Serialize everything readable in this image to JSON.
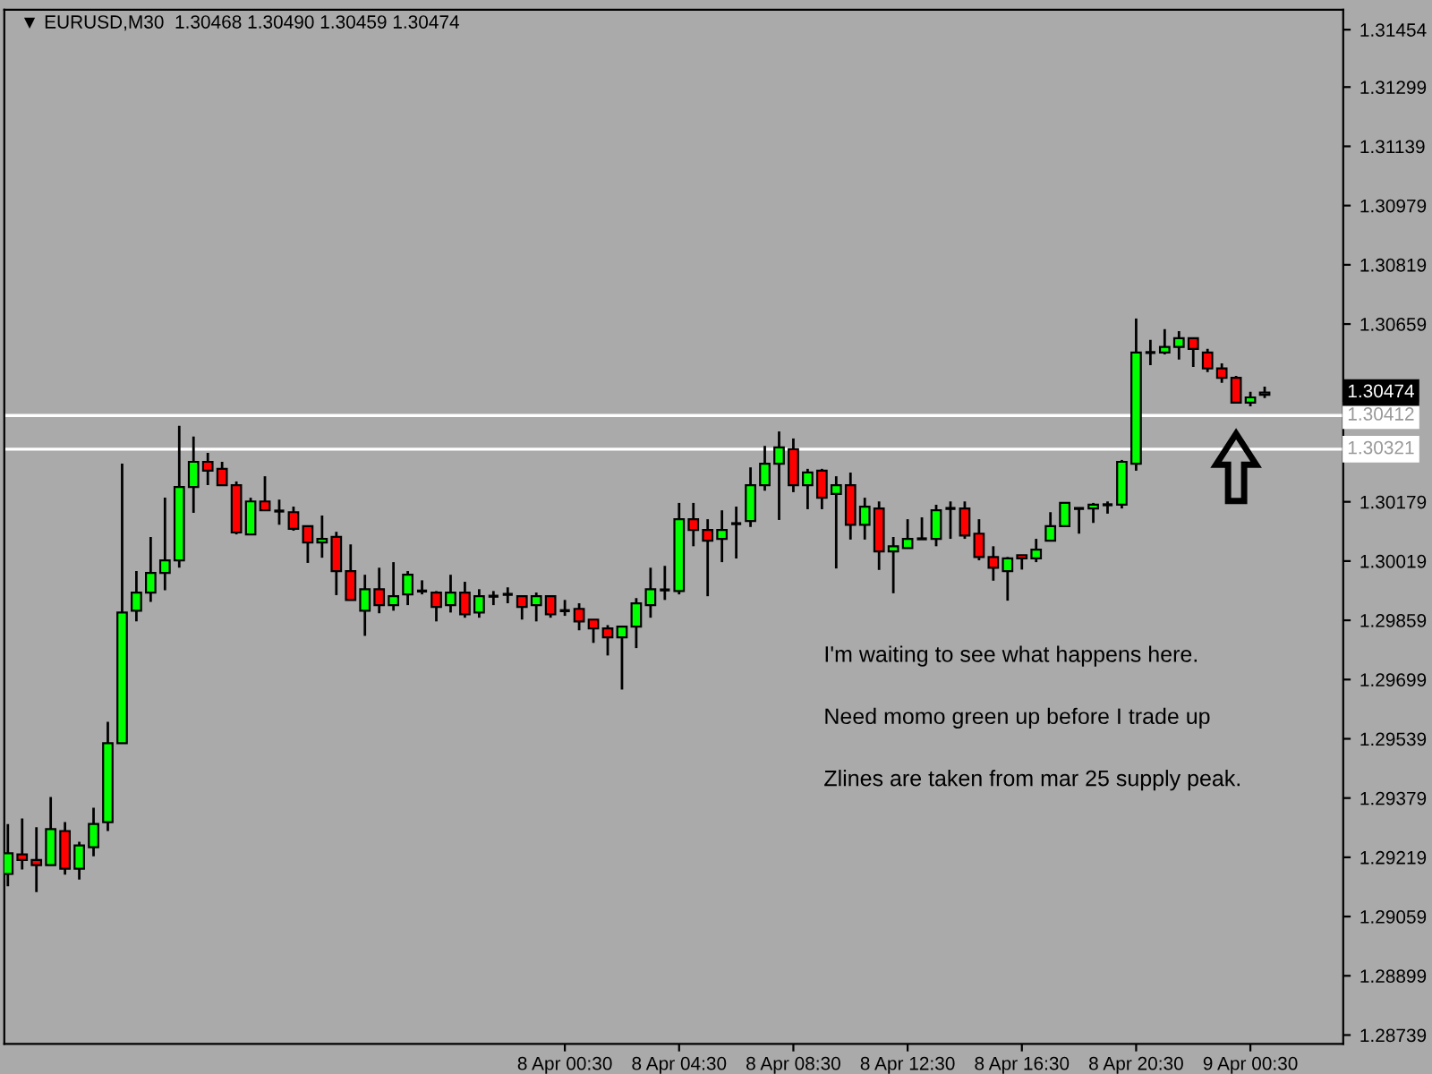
{
  "chart_data": {
    "type": "candlestick",
    "title": "▼ EURUSD,M30  1.30468 1.30490 1.30459 1.30474",
    "categories": [
      null,
      null,
      null,
      null,
      null,
      null,
      null,
      null,
      null,
      null,
      null,
      null,
      null,
      null,
      null,
      null,
      null,
      null,
      null,
      null,
      null,
      null,
      null,
      null,
      null,
      null,
      null,
      null,
      null,
      null,
      null,
      null,
      null,
      null,
      null,
      null,
      null,
      null,
      null,
      "8 Apr 00:30",
      null,
      null,
      null,
      null,
      null,
      null,
      null,
      "8 Apr 04:30",
      null,
      null,
      null,
      null,
      null,
      null,
      null,
      "8 Apr 08:30",
      null,
      null,
      null,
      null,
      null,
      null,
      null,
      "8 Apr 12:30",
      null,
      null,
      null,
      null,
      null,
      null,
      null,
      "8 Apr 16:30",
      null,
      null,
      null,
      null,
      null,
      null,
      null,
      "8 Apr 20:30",
      null,
      null,
      null,
      null,
      null,
      null,
      null,
      "9 Apr 00:30",
      null
    ],
    "ohlc": [
      [
        1.29174,
        1.29309,
        1.29141,
        1.2923
      ],
      [
        1.29227,
        1.29324,
        1.29186,
        1.29212
      ],
      [
        1.29212,
        1.293,
        1.29125,
        1.29198
      ],
      [
        1.29198,
        1.29382,
        1.29198,
        1.29295
      ],
      [
        1.2929,
        1.29314,
        1.29172,
        1.29188
      ],
      [
        1.29188,
        1.29261,
        1.29159,
        1.29251
      ],
      [
        1.29246,
        1.29353,
        1.29222,
        1.29309
      ],
      [
        1.29314,
        1.29585,
        1.2929,
        1.29527
      ],
      [
        1.29527,
        1.30282,
        1.29527,
        1.2988
      ],
      [
        1.29885,
        1.29992,
        1.29856,
        1.29934
      ],
      [
        1.29934,
        1.30084,
        1.29909,
        1.29987
      ],
      [
        1.29987,
        1.3019,
        1.2994,
        1.30021
      ],
      [
        1.30021,
        1.30384,
        1.30001,
        1.30219
      ],
      [
        1.30219,
        1.30355,
        1.30149,
        1.30287
      ],
      [
        1.30287,
        1.30311,
        1.30224,
        1.30263
      ],
      [
        1.30268,
        1.30287,
        1.30224,
        1.30224
      ],
      [
        1.30224,
        1.30234,
        1.30091,
        1.30096
      ],
      [
        1.30091,
        1.3019,
        1.30091,
        1.3018
      ],
      [
        1.3018,
        1.30248,
        1.30156,
        1.30156
      ],
      [
        1.30154,
        1.30185,
        1.30117,
        1.30154
      ],
      [
        1.30151,
        1.30166,
        1.30101,
        1.30106
      ],
      [
        1.30113,
        1.30113,
        1.30014,
        1.30069
      ],
      [
        1.30069,
        1.30142,
        1.30028,
        1.30079
      ],
      [
        1.30084,
        1.30098,
        1.29927,
        1.29992
      ],
      [
        1.29992,
        1.30064,
        1.29914,
        1.29914
      ],
      [
        1.29885,
        1.29982,
        1.29817,
        1.29943
      ],
      [
        1.29943,
        1.30001,
        1.29878,
        1.299
      ],
      [
        1.299,
        1.30016,
        1.29885,
        1.29924
      ],
      [
        1.29929,
        1.29992,
        1.299,
        1.29982
      ],
      [
        1.29938,
        1.29967,
        1.29929,
        1.29938
      ],
      [
        1.29934,
        1.29938,
        1.29856,
        1.29895
      ],
      [
        1.299,
        1.29982,
        1.2988,
        1.29934
      ],
      [
        1.29934,
        1.29963,
        1.29866,
        1.29875
      ],
      [
        1.2988,
        1.29943,
        1.29866,
        1.29924
      ],
      [
        1.29924,
        1.29938,
        1.299,
        1.29924
      ],
      [
        1.29929,
        1.29948,
        1.29905,
        1.29929
      ],
      [
        1.29924,
        1.29924,
        1.29861,
        1.29895
      ],
      [
        1.299,
        1.29934,
        1.29856,
        1.29924
      ],
      [
        1.29924,
        1.29924,
        1.29866,
        1.29875
      ],
      [
        1.29885,
        1.29914,
        1.29871,
        1.29885
      ],
      [
        1.2989,
        1.29905,
        1.29832,
        1.29856
      ],
      [
        1.29861,
        1.29861,
        1.29798,
        1.29837
      ],
      [
        1.29837,
        1.29846,
        1.29764,
        1.29813
      ],
      [
        1.29813,
        1.29842,
        1.29672,
        1.29842
      ],
      [
        1.29842,
        1.29919,
        1.29784,
        1.29905
      ],
      [
        1.299,
        1.30001,
        1.29866,
        1.29943
      ],
      [
        1.29941,
        1.30006,
        1.29914,
        1.29941
      ],
      [
        1.29938,
        1.30176,
        1.29929,
        1.30132
      ],
      [
        1.30132,
        1.30176,
        1.30059,
        1.30103
      ],
      [
        1.30103,
        1.30132,
        1.29924,
        1.30074
      ],
      [
        1.30079,
        1.30156,
        1.30016,
        1.30103
      ],
      [
        1.3012,
        1.30166,
        1.30026,
        1.3012
      ],
      [
        1.30127,
        1.30272,
        1.30111,
        1.30224
      ],
      [
        1.30224,
        1.3033,
        1.30209,
        1.30282
      ],
      [
        1.30282,
        1.30369,
        1.3013,
        1.30326
      ],
      [
        1.30321,
        1.3035,
        1.30205,
        1.30224
      ],
      [
        1.30224,
        1.30268,
        1.30159,
        1.30258
      ],
      [
        1.30263,
        1.30268,
        1.30159,
        1.3019
      ],
      [
        1.302,
        1.30248,
        1.29999,
        1.30224
      ],
      [
        1.30224,
        1.30258,
        1.30077,
        1.30117
      ],
      [
        1.30117,
        1.3019,
        1.30077,
        1.30166
      ],
      [
        1.30161,
        1.3018,
        1.29995,
        1.30045
      ],
      [
        1.30045,
        1.30084,
        1.29932,
        1.30059
      ],
      [
        1.30054,
        1.30132,
        1.30054,
        1.30079
      ],
      [
        1.30079,
        1.30137,
        1.30079,
        1.30079
      ],
      [
        1.30079,
        1.30171,
        1.30059,
        1.30156
      ],
      [
        1.30161,
        1.3018,
        1.30079,
        1.30161
      ],
      [
        1.30161,
        1.3018,
        1.30079,
        1.30088
      ],
      [
        1.30093,
        1.30132,
        1.30021,
        1.3003
      ],
      [
        1.3003,
        1.30059,
        1.29966,
        1.30001
      ],
      [
        1.29992,
        1.3003,
        1.29912,
        1.30026
      ],
      [
        1.30035,
        1.30035,
        1.29996,
        1.30026
      ],
      [
        1.30026,
        1.30079,
        1.30016,
        1.3005
      ],
      [
        1.30074,
        1.30151,
        1.30074,
        1.30113
      ],
      [
        1.30113,
        1.30176,
        1.30113,
        1.30176
      ],
      [
        1.30161,
        1.30161,
        1.30093,
        1.30161
      ],
      [
        1.30161,
        1.30176,
        1.30122,
        1.30171
      ],
      [
        1.30171,
        1.3018,
        1.30147,
        1.30171
      ],
      [
        1.30171,
        1.30292,
        1.30161,
        1.30287
      ],
      [
        1.30282,
        1.30674,
        1.30263,
        1.30582
      ],
      [
        1.30582,
        1.30616,
        1.30548,
        1.30582
      ],
      [
        1.30582,
        1.30645,
        1.30577,
        1.30597
      ],
      [
        1.30597,
        1.3064,
        1.30563,
        1.30621
      ],
      [
        1.30621,
        1.30621,
        1.30543,
        1.30592
      ],
      [
        1.30582,
        1.30592,
        1.30529,
        1.30539
      ],
      [
        1.30539,
        1.30553,
        1.305,
        1.30514
      ],
      [
        1.30514,
        1.30519,
        1.30447,
        1.30447
      ],
      [
        1.30447,
        1.30476,
        1.30437,
        1.30461
      ],
      [
        1.30468,
        1.3049,
        1.30459,
        1.30474
      ]
    ],
    "colors": [
      "#00ff00",
      "#ff0000",
      "#ff0000",
      "#00ff00",
      "#ff0000",
      "#00ff00",
      "#00ff00",
      "#00ff00",
      "#00ff00",
      "#00ff00",
      "#00ff00",
      "#00ff00",
      "#00ff00",
      "#00ff00",
      "#ff0000",
      "#ff0000",
      "#ff0000",
      "#00ff00",
      "#ff0000",
      "#000000",
      "#ff0000",
      "#ff0000",
      "#00ff00",
      "#ff0000",
      "#ff0000",
      "#00ff00",
      "#ff0000",
      "#00ff00",
      "#00ff00",
      "#000000",
      "#ff0000",
      "#00ff00",
      "#ff0000",
      "#00ff00",
      "#000000",
      "#000000",
      "#ff0000",
      "#00ff00",
      "#ff0000",
      "#000000",
      "#ff0000",
      "#ff0000",
      "#ff0000",
      "#00ff00",
      "#00ff00",
      "#00ff00",
      "#000000",
      "#00ff00",
      "#ff0000",
      "#ff0000",
      "#00ff00",
      "#000000",
      "#00ff00",
      "#00ff00",
      "#00ff00",
      "#ff0000",
      "#00ff00",
      "#ff0000",
      "#00ff00",
      "#ff0000",
      "#00ff00",
      "#ff0000",
      "#00ff00",
      "#00ff00",
      "#000000",
      "#00ff00",
      "#000000",
      "#ff0000",
      "#ff0000",
      "#ff0000",
      "#00ff00",
      "#ff0000",
      "#00ff00",
      "#00ff00",
      "#00ff00",
      "#000000",
      "#00ff00",
      "#000000",
      "#00ff00",
      "#00ff00",
      "#000000",
      "#00ff00",
      "#00ff00",
      "#ff0000",
      "#ff0000",
      "#ff0000",
      "#ff0000",
      "#00ff00",
      "#00ff00"
    ],
    "ylim": [
      1.28715,
      1.31508
    ],
    "yticks": [
      1.31454,
      1.31299,
      1.31139,
      1.30979,
      1.30819,
      1.30659,
      1.30179,
      1.30019,
      1.29859,
      1.29699,
      1.29539,
      1.29379,
      1.29219,
      1.29059,
      1.28899,
      1.28739
    ],
    "ref_lines": [
      {
        "axis": "y",
        "value": 1.30412,
        "label": "1.30412",
        "color": "#ffffff",
        "line_style": "solid"
      },
      {
        "axis": "y",
        "value": 1.30321,
        "label": "1.30321",
        "color": "#ffffff",
        "line_style": "solid"
      }
    ],
    "annotations": [
      "1.30474",
      "I'm waiting to see what happens here.",
      "Need momo green up before I trade up",
      "Zlines are taken from mar 25 supply peak."
    ],
    "grid": false,
    "legend": false
  }
}
